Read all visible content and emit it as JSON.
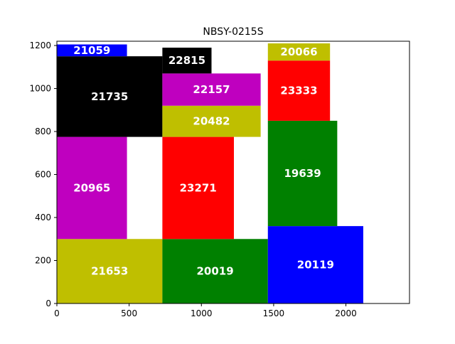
{
  "chart_data": {
    "type": "bar",
    "title": "NBSY-0215S",
    "xlabel": "",
    "ylabel": "",
    "xlim": [
      0,
      2440
    ],
    "ylim": [
      0,
      1220
    ],
    "xticks": [
      0,
      500,
      1000,
      1500,
      2000
    ],
    "yticks": [
      0,
      200,
      400,
      600,
      800,
      1000,
      1200
    ],
    "grid": false,
    "rects": [
      {
        "label": "21653",
        "x0": 0,
        "x1": 730,
        "y0": 0,
        "y1": 300,
        "color": "#bfbf00"
      },
      {
        "label": "20019",
        "x0": 730,
        "x1": 1460,
        "y0": 0,
        "y1": 300,
        "color": "#008000"
      },
      {
        "label": "20119",
        "x0": 1460,
        "x1": 2120,
        "y0": 0,
        "y1": 360,
        "color": "#0000ff"
      },
      {
        "label": "20965",
        "x0": 0,
        "x1": 485,
        "y0": 300,
        "y1": 775,
        "color": "#bf00bf"
      },
      {
        "label": "23271",
        "x0": 730,
        "x1": 1225,
        "y0": 300,
        "y1": 775,
        "color": "#ff0000"
      },
      {
        "label": "19639",
        "x0": 1460,
        "x1": 1940,
        "y0": 360,
        "y1": 850,
        "color": "#008000"
      },
      {
        "label": "21735",
        "x0": 0,
        "x1": 730,
        "y0": 775,
        "y1": 1150,
        "color": "#000000"
      },
      {
        "label": "20482",
        "x0": 730,
        "x1": 1410,
        "y0": 775,
        "y1": 920,
        "color": "#bfbf00"
      },
      {
        "label": "22157",
        "x0": 730,
        "x1": 1410,
        "y0": 920,
        "y1": 1070,
        "color": "#bf00bf"
      },
      {
        "label": "22815",
        "x0": 730,
        "x1": 1070,
        "y0": 1070,
        "y1": 1190,
        "color": "#000000"
      },
      {
        "label": "21059",
        "x0": 0,
        "x1": 485,
        "y0": 1150,
        "y1": 1205,
        "color": "#0000ff"
      },
      {
        "label": "23333",
        "x0": 1460,
        "x1": 1890,
        "y0": 850,
        "y1": 1130,
        "color": "#ff0000"
      },
      {
        "label": "20066",
        "x0": 1460,
        "x1": 1890,
        "y0": 1130,
        "y1": 1210,
        "color": "#bfbf00"
      }
    ]
  }
}
